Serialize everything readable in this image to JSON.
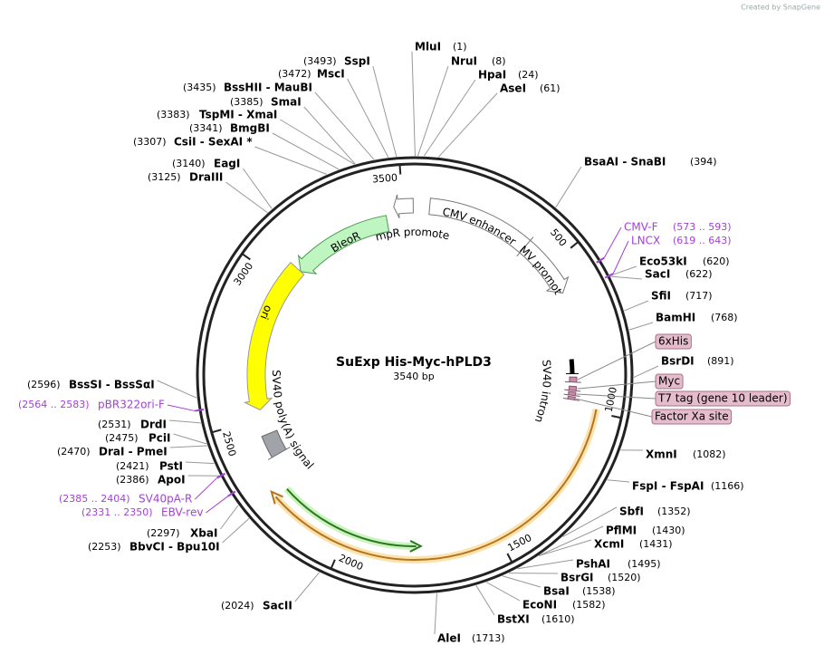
{
  "credit": "Created by SnapGene",
  "title": "SuExp His-Myc-hPLD3",
  "length": "3540 bp",
  "ticks": [
    500,
    1000,
    1500,
    2000,
    2500,
    3000,
    3500
  ],
  "enzymes": [
    {
      "name": "MluI",
      "pos": "(1)"
    },
    {
      "name": "NruI",
      "pos": "(8)"
    },
    {
      "name": "HpaI",
      "pos": "(24)"
    },
    {
      "name": "AseI",
      "pos": "(61)"
    },
    {
      "name": "BsaAI - SnaBI",
      "pos": "(394)"
    },
    {
      "name": "Eco53kI",
      "pos": "(620)"
    },
    {
      "name": "SacI",
      "pos": "(622)"
    },
    {
      "name": "SfiI",
      "pos": "(717)"
    },
    {
      "name": "BamHI",
      "pos": "(768)"
    },
    {
      "name": "BsrDI",
      "pos": "(891)"
    },
    {
      "name": "XmnI",
      "pos": "(1082)"
    },
    {
      "name": "FspI - FspAI",
      "pos": "(1166)"
    },
    {
      "name": "SbfI",
      "pos": "(1352)"
    },
    {
      "name": "PflMI",
      "pos": "(1430)"
    },
    {
      "name": "XcmI",
      "pos": "(1431)"
    },
    {
      "name": "PshAI",
      "pos": "(1495)"
    },
    {
      "name": "BsrGI",
      "pos": "(1520)"
    },
    {
      "name": "BsaI",
      "pos": "(1538)"
    },
    {
      "name": "EcoNI",
      "pos": "(1582)"
    },
    {
      "name": "BstXI",
      "pos": "(1610)"
    },
    {
      "name": "AleI",
      "pos": "(1713)"
    },
    {
      "name": "SspI",
      "pos": "(3493)"
    },
    {
      "name": "MscI",
      "pos": "(3472)"
    },
    {
      "name": "BssHII - MauBI",
      "pos": "(3435)"
    },
    {
      "name": "SmaI",
      "pos": "(3385)"
    },
    {
      "name": "TspMI - XmaI",
      "pos": "(3383)"
    },
    {
      "name": "BmgBI",
      "pos": "(3341)"
    },
    {
      "name": "CsiI - SexAI *",
      "pos": "(3307)"
    },
    {
      "name": "EagI",
      "pos": "(3140)"
    },
    {
      "name": "DraIII",
      "pos": "(3125)"
    },
    {
      "name": "BssSI - BssSαI",
      "pos": "(2596)"
    },
    {
      "name": "DrdI",
      "pos": "(2531)"
    },
    {
      "name": "PciI",
      "pos": "(2475)"
    },
    {
      "name": "DraI - PmeI",
      "pos": "(2470)"
    },
    {
      "name": "PstI",
      "pos": "(2421)"
    },
    {
      "name": "ApoI",
      "pos": "(2386)"
    },
    {
      "name": "XbaI",
      "pos": "(2297)"
    },
    {
      "name": "BbvCI - Bpu10I",
      "pos": "(2253)"
    },
    {
      "name": "SacII",
      "pos": "(2024)"
    }
  ],
  "primers": [
    {
      "name": "CMV-F",
      "range": "(573 .. 593)"
    },
    {
      "name": "LNCX",
      "range": "(619 .. 643)"
    },
    {
      "name": "pBR322ori-F",
      "range": "(2564 .. 2583)"
    },
    {
      "name": "SV40pA-R",
      "range": "(2385 .. 2404)"
    },
    {
      "name": "EBV-rev",
      "range": "(2331 .. 2350)"
    }
  ],
  "features": [
    "CMV enhancer",
    "CMV promoter",
    "AmpR promoter",
    "BleoR",
    "ori",
    "SV40 poly(A) signal",
    "SV40 intron"
  ],
  "tags": [
    "6xHis",
    "Myc",
    "T7 tag (gene 10 leader)",
    "Factor Xa site"
  ]
}
